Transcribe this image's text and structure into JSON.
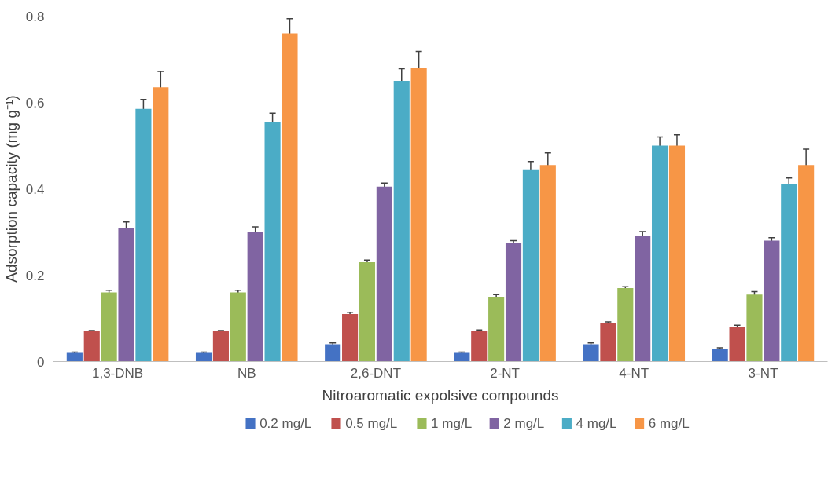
{
  "chart_data": {
    "type": "bar",
    "xlabel": "Nitroaromatic expolsive compounds",
    "ylabel": "Adsorption capacity (mg g⁻¹)",
    "categories": [
      "1,3-DNB",
      "NB",
      "2,6-DNT",
      "2-NT",
      "4-NT",
      "3-NT"
    ],
    "ylim": [
      0,
      0.8
    ],
    "yticks": [
      0,
      0.2,
      0.4,
      0.6,
      0.8
    ],
    "grid": false,
    "legend": "bottom",
    "series": [
      {
        "name": "0.2 mg/L",
        "color": "#4472c4",
        "values": [
          0.02,
          0.02,
          0.04,
          0.02,
          0.04,
          0.03
        ],
        "errors": [
          0.002,
          0.002,
          0.003,
          0.002,
          0.003,
          0.002
        ]
      },
      {
        "name": "0.5 mg/L",
        "color": "#c0504d",
        "values": [
          0.07,
          0.07,
          0.11,
          0.07,
          0.09,
          0.08
        ],
        "errors": [
          0.002,
          0.002,
          0.004,
          0.003,
          0.002,
          0.004
        ]
      },
      {
        "name": "1 mg/L",
        "color": "#9bbb59",
        "values": [
          0.16,
          0.16,
          0.23,
          0.15,
          0.17,
          0.155
        ],
        "errors": [
          0.005,
          0.005,
          0.005,
          0.005,
          0.003,
          0.007
        ]
      },
      {
        "name": "2 mg/L",
        "color": "#8064a2",
        "values": [
          0.31,
          0.3,
          0.405,
          0.275,
          0.29,
          0.28
        ],
        "errors": [
          0.013,
          0.012,
          0.008,
          0.005,
          0.011,
          0.007
        ]
      },
      {
        "name": "4 mg/L",
        "color": "#4bacc6",
        "values": [
          0.585,
          0.555,
          0.65,
          0.445,
          0.5,
          0.41
        ],
        "errors": [
          0.022,
          0.02,
          0.028,
          0.018,
          0.02,
          0.015
        ]
      },
      {
        "name": "6 mg/L",
        "color": "#f79646",
        "values": [
          0.635,
          0.76,
          0.68,
          0.455,
          0.5,
          0.455
        ],
        "errors": [
          0.037,
          0.034,
          0.038,
          0.028,
          0.025,
          0.037
        ]
      }
    ]
  }
}
